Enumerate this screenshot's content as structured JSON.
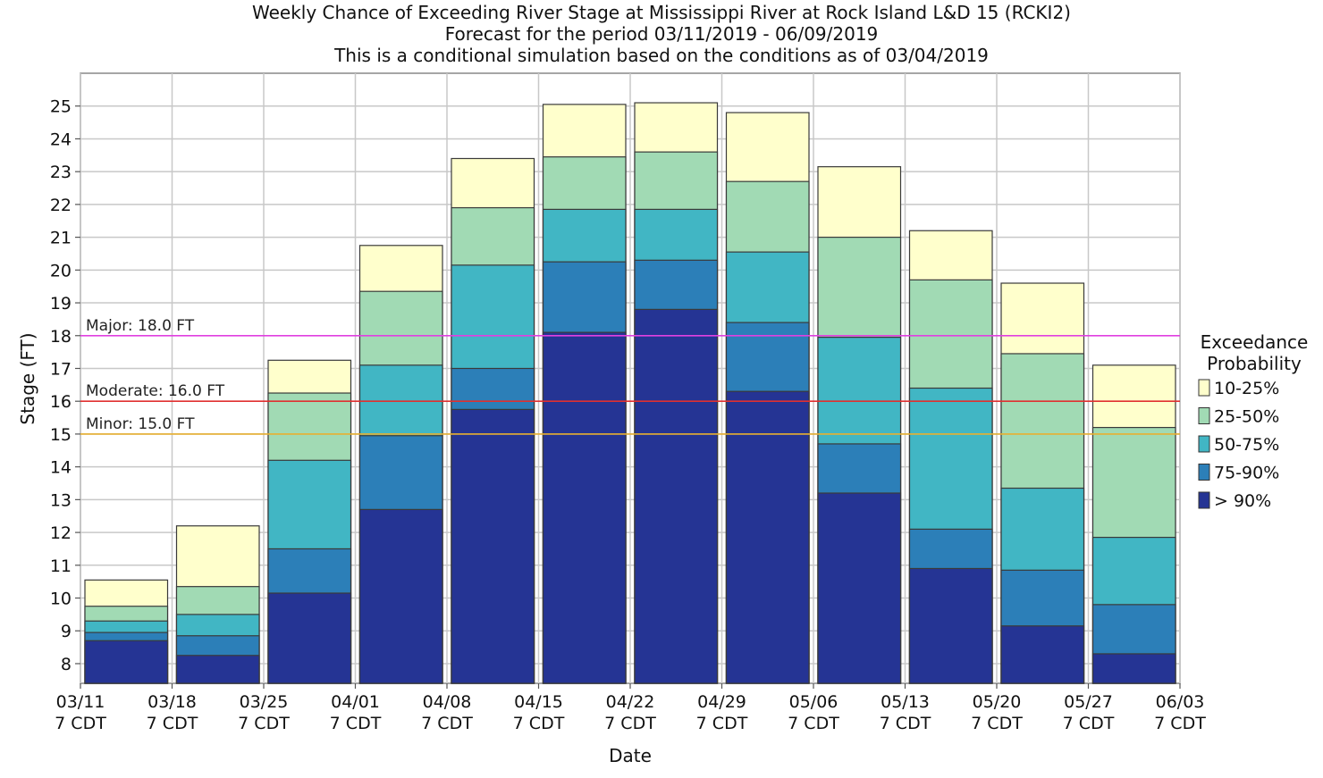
{
  "chart_data": {
    "type": "bar",
    "stacked": true,
    "title": "Weekly Chance of Exceeding River Stage at Mississippi River at Rock Island L&D 15 (RCKI2)",
    "subtitle": "Forecast for the period 03/11/2019 - 06/09/2019",
    "subtitle2": "This is a conditional simulation based on the conditions as of 03/04/2019",
    "xlabel": "Date",
    "ylabel": "Stage (FT)",
    "ylim": [
      7.4,
      26.0
    ],
    "yticks": [
      8,
      9,
      10,
      11,
      12,
      13,
      14,
      15,
      16,
      17,
      18,
      19,
      20,
      21,
      22,
      23,
      24,
      25
    ],
    "x_tick_labels": [
      {
        "date": "03/11",
        "time": "7 CDT"
      },
      {
        "date": "03/18",
        "time": "7 CDT"
      },
      {
        "date": "03/25",
        "time": "7 CDT"
      },
      {
        "date": "04/01",
        "time": "7 CDT"
      },
      {
        "date": "04/08",
        "time": "7 CDT"
      },
      {
        "date": "04/15",
        "time": "7 CDT"
      },
      {
        "date": "04/22",
        "time": "7 CDT"
      },
      {
        "date": "04/29",
        "time": "7 CDT"
      },
      {
        "date": "05/06",
        "time": "7 CDT"
      },
      {
        "date": "05/13",
        "time": "7 CDT"
      },
      {
        "date": "05/20",
        "time": "7 CDT"
      },
      {
        "date": "05/27",
        "time": "7 CDT"
      },
      {
        "date": "06/03",
        "time": "7 CDT"
      }
    ],
    "grid": true,
    "legend": {
      "title_line1": "Exceedance",
      "title_line2": "Probability",
      "placement": "right",
      "items": [
        {
          "label": "10-25%",
          "color": "#ffffcc"
        },
        {
          "label": "25-50%",
          "color": "#a1dab4"
        },
        {
          "label": "50-75%",
          "color": "#41b6c4"
        },
        {
          "label": "75-90%",
          "color": "#2c7fb8"
        },
        {
          "label": "> 90%",
          "color": "#253494"
        }
      ]
    },
    "flood_stages": [
      {
        "label": "Major: 18.0 FT",
        "value": 18.0,
        "color": "#e040e0"
      },
      {
        "label": "Moderate: 16.0 FT",
        "value": 16.0,
        "color": "#e03030"
      },
      {
        "label": "Minor: 15.0 FT",
        "value": 15.0,
        "color": "#e8b030"
      }
    ],
    "weeks": [
      {
        "start": "03/11",
        "gt90": 8.7,
        "p75_90": 8.95,
        "p50_75": 9.3,
        "p25_50": 9.75,
        "p10_25": 10.55
      },
      {
        "start": "03/18",
        "gt90": 8.25,
        "p75_90": 8.85,
        "p50_75": 9.5,
        "p25_50": 10.35,
        "p10_25": 12.2
      },
      {
        "start": "03/25",
        "gt90": 10.15,
        "p75_90": 11.5,
        "p50_75": 14.2,
        "p25_50": 16.25,
        "p10_25": 17.25
      },
      {
        "start": "04/01",
        "gt90": 12.7,
        "p75_90": 14.95,
        "p50_75": 17.1,
        "p25_50": 19.35,
        "p10_25": 20.75
      },
      {
        "start": "04/08",
        "gt90": 15.75,
        "p75_90": 17.0,
        "p50_75": 20.15,
        "p25_50": 21.9,
        "p10_25": 23.4
      },
      {
        "start": "04/15",
        "gt90": 18.1,
        "p75_90": 20.25,
        "p50_75": 21.85,
        "p25_50": 23.45,
        "p10_25": 25.05
      },
      {
        "start": "04/22",
        "gt90": 18.8,
        "p75_90": 20.3,
        "p50_75": 21.85,
        "p25_50": 23.6,
        "p10_25": 25.1
      },
      {
        "start": "04/29",
        "gt90": 16.3,
        "p75_90": 18.4,
        "p50_75": 20.55,
        "p25_50": 22.7,
        "p10_25": 24.8
      },
      {
        "start": "05/06",
        "gt90": 13.2,
        "p75_90": 14.7,
        "p50_75": 17.95,
        "p25_50": 21.0,
        "p10_25": 23.15
      },
      {
        "start": "05/13",
        "gt90": 10.9,
        "p75_90": 12.1,
        "p50_75": 16.4,
        "p25_50": 19.7,
        "p10_25": 21.2
      },
      {
        "start": "05/20",
        "gt90": 9.15,
        "p75_90": 10.85,
        "p50_75": 13.35,
        "p25_50": 17.45,
        "p10_25": 19.6
      },
      {
        "start": "05/27",
        "gt90": 8.3,
        "p75_90": 9.8,
        "p50_75": 11.85,
        "p25_50": 15.2,
        "p10_25": 17.1
      }
    ]
  }
}
